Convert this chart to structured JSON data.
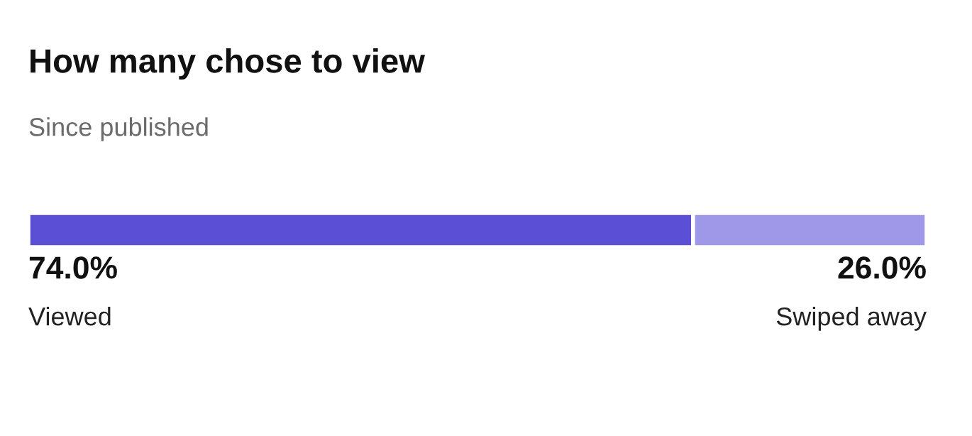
{
  "chart_data": {
    "type": "bar",
    "title": "How many chose to view",
    "subtitle": "Since published",
    "orientation": "horizontal",
    "stacked": true,
    "categories": [
      null
    ],
    "series": [
      {
        "name": "Viewed",
        "color": "#5b4fd6",
        "values": [
          74.0
        ],
        "value_labels": [
          "74.0%"
        ]
      },
      {
        "name": "Swiped away",
        "color": "#9f98e8",
        "values": [
          26.0
        ],
        "value_labels": [
          "26.0%"
        ]
      }
    ]
  }
}
